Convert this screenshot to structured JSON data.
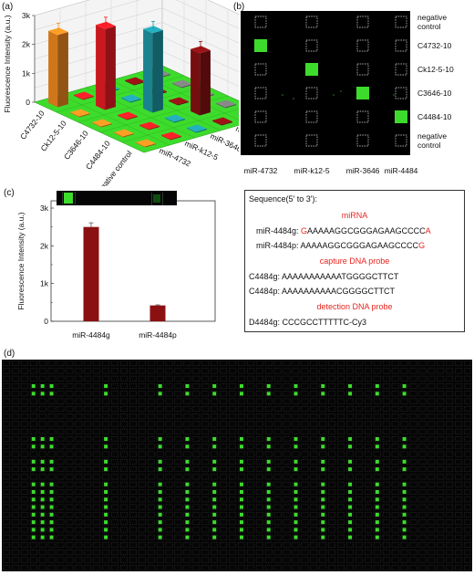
{
  "panels": {
    "a": "(a)",
    "b": "(b)",
    "c": "(c)",
    "d": "(d)"
  },
  "chart_data": [
    {
      "type": "bar",
      "ylabel": "Fluorescence Intensity (a.u.)",
      "yticks": [
        "0",
        "1k",
        "2k",
        "3k"
      ],
      "ylim": [
        0,
        3000
      ],
      "probes": [
        "C4732-10",
        "Ck12-5-10",
        "C3646-10",
        "C4484-10",
        "negative control"
      ],
      "targets": [
        "miR-4732",
        "miR-k12-5",
        "miR-3646",
        "miR-4484",
        "negative control"
      ],
      "series": [
        {
          "name": "miR-4732",
          "values": [
            2500,
            30,
            30,
            30,
            30
          ],
          "color": "#f58b1f"
        },
        {
          "name": "miR-k12-5",
          "values": [
            30,
            2800,
            30,
            30,
            30
          ],
          "color": "#ee1c24"
        },
        {
          "name": "miR-3646",
          "values": [
            30,
            30,
            2750,
            30,
            30
          ],
          "color": "#1e9aa8"
        },
        {
          "name": "miR-4484",
          "values": [
            30,
            30,
            30,
            2150,
            30
          ],
          "color": "#8b1012"
        },
        {
          "name": "negative control",
          "values": [
            30,
            30,
            30,
            30,
            30
          ],
          "color": "#777777"
        }
      ],
      "grid": true,
      "base_color": "#3ddc2c"
    },
    {
      "type": "heatmap",
      "rows": [
        "negative control",
        "C4732-10",
        "Ck12-5-10",
        "C3646-10",
        "C4484-10",
        "negative control"
      ],
      "columns": [
        "miR-4732",
        "miR-k12-5",
        "miR-3646",
        "miR-4484"
      ],
      "signal": [
        [
          0,
          0,
          0,
          0
        ],
        [
          1,
          0,
          0,
          0
        ],
        [
          0,
          1,
          0,
          0
        ],
        [
          0,
          0,
          1,
          0
        ],
        [
          0,
          0,
          0,
          1
        ],
        [
          0,
          0,
          0,
          0
        ]
      ],
      "spot_color": "#3ddc2c"
    },
    {
      "type": "bar",
      "categories": [
        "miR-4484g",
        "miR-4484p"
      ],
      "values": [
        2500,
        420
      ],
      "errors": [
        110,
        15
      ],
      "ylabel": "Fluorescence Intensity (a.u.)",
      "yticks": [
        "0",
        "1k",
        "2k",
        "3k"
      ],
      "ylim": [
        0,
        3000
      ],
      "color": "#8b1012"
    }
  ],
  "sequence_box": {
    "title": "Sequence(5' to 3'):",
    "sec_mirna": "miRNA",
    "mir_g_name": "miR-4484g: ",
    "mir_g_head": "G",
    "mir_g_body": "AAAAAGGCGGGAGAAGCCCC",
    "mir_g_tail": "A",
    "mir_p_name": "miR-4484p: ",
    "mir_p_body": "AAAAAGGCGGGAGAAGCCCC",
    "mir_p_tail": "G",
    "sec_capture": "capture DNA probe",
    "cap_g": "C4484g: AAAAAAAAAAATGGGGCTTCT",
    "cap_p": "C4484p: AAAAAAAAAACGGGGCTTCT",
    "sec_detect": "detection DNA probe",
    "det_g": "D4484g: CCCGCCTTTTTC-Cy3"
  },
  "array_d": {
    "background": "#050505",
    "spot_color": "#3ddc2c"
  }
}
